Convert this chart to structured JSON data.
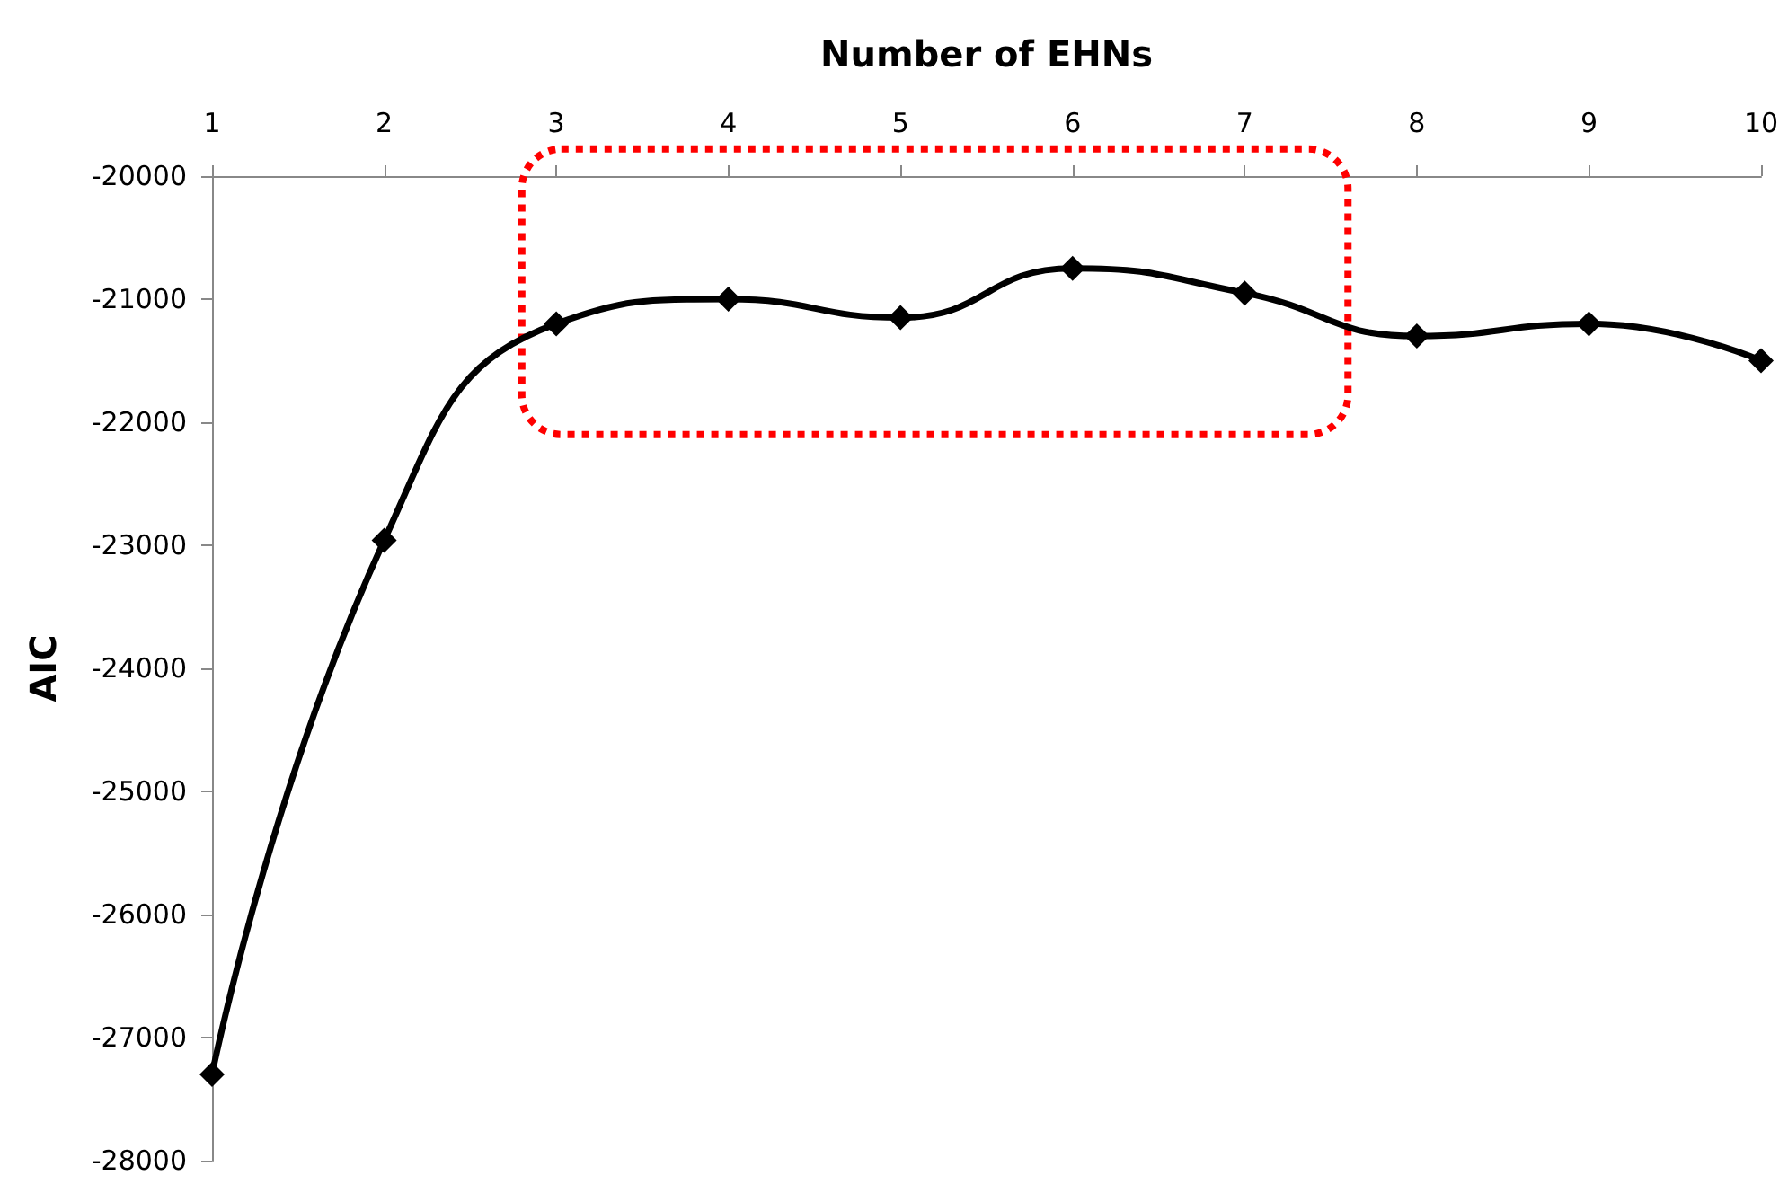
{
  "chart_data": {
    "type": "line",
    "xlabel": "Number of EHNs",
    "ylabel": "AIC",
    "x": [
      1,
      2,
      3,
      4,
      5,
      6,
      7,
      8,
      9,
      10
    ],
    "series": [
      {
        "color": "#000000",
        "values": [
          -27300,
          -22960,
          -21200,
          -21000,
          -21150,
          -20750,
          -20950,
          -21300,
          -21200,
          -21500
        ]
      }
    ],
    "xlim": [
      1,
      10
    ],
    "xticks": [
      1,
      2,
      3,
      4,
      5,
      6,
      7,
      8,
      9,
      10
    ],
    "ylim": [
      -28000,
      -20000
    ],
    "yticks": [
      -28000,
      -27000,
      -26000,
      -25000,
      -24000,
      -23000,
      -22000,
      -21000,
      -20000
    ],
    "grid": false,
    "marker": "diamond",
    "line_style": "solid"
  }
}
